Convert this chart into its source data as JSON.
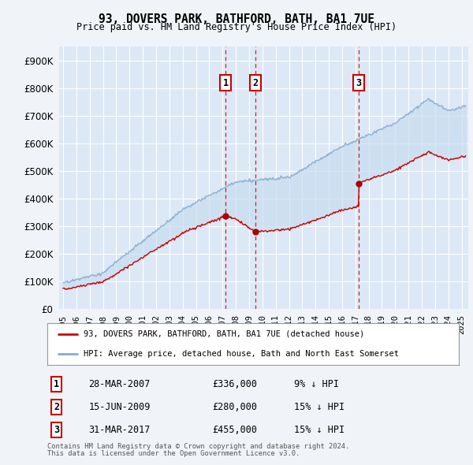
{
  "title_line1": "93, DOVERS PARK, BATHFORD, BATH, BA1 7UE",
  "title_line2": "Price paid vs. HM Land Registry's House Price Index (HPI)",
  "background_color": "#f0f4f8",
  "plot_bg_color": "#dce8f5",
  "grid_color": "#ffffff",
  "red_line_color": "#cc0000",
  "blue_line_color": "#88aacc",
  "shade_color": "#c8ddf0",
  "transactions": [
    {
      "date_label": "28-MAR-2007",
      "date_x": 2007.23,
      "price": 336000,
      "pct": "9%",
      "label": "1"
    },
    {
      "date_label": "15-JUN-2009",
      "date_x": 2009.46,
      "price": 280000,
      "pct": "15%",
      "label": "2"
    },
    {
      "date_label": "31-MAR-2017",
      "date_x": 2017.25,
      "price": 455000,
      "pct": "15%",
      "label": "3"
    }
  ],
  "ylim": [
    0,
    950000
  ],
  "yticks": [
    0,
    100000,
    200000,
    300000,
    400000,
    500000,
    600000,
    700000,
    800000,
    900000
  ],
  "ytick_labels": [
    "£0",
    "£100K",
    "£200K",
    "£300K",
    "£400K",
    "£500K",
    "£600K",
    "£700K",
    "£800K",
    "£900K"
  ],
  "xlim_start": 1994.7,
  "xlim_end": 2025.5,
  "xtick_years": [
    1995,
    1996,
    1997,
    1998,
    1999,
    2000,
    2001,
    2002,
    2003,
    2004,
    2005,
    2006,
    2007,
    2008,
    2009,
    2010,
    2011,
    2012,
    2013,
    2014,
    2015,
    2016,
    2017,
    2018,
    2019,
    2020,
    2021,
    2022,
    2023,
    2024,
    2025
  ],
  "legend_label_red": "93, DOVERS PARK, BATHFORD, BATH, BA1 7UE (detached house)",
  "legend_label_blue": "HPI: Average price, detached house, Bath and North East Somerset",
  "footer_line1": "Contains HM Land Registry data © Crown copyright and database right 2024.",
  "footer_line2": "This data is licensed under the Open Government Licence v3.0."
}
